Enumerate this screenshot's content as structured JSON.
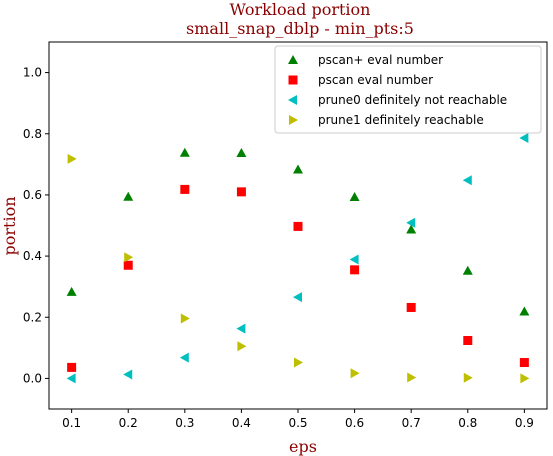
{
  "chart_data": {
    "type": "scatter",
    "title": "Workload portion",
    "subtitle": "small_snap_dblp - min_pts:5",
    "xlabel": "eps",
    "ylabel": "portion",
    "xlim": [
      0.06,
      0.94
    ],
    "ylim": [
      -0.1,
      1.1
    ],
    "x_ticks": [
      "0.1",
      "0.2",
      "0.3",
      "0.4",
      "0.5",
      "0.6",
      "0.7",
      "0.8",
      "0.9"
    ],
    "y_ticks": [
      "0.0",
      "0.2",
      "0.4",
      "0.6",
      "0.8",
      "1.0"
    ],
    "grid": false,
    "legend_position": "top-right",
    "x": [
      0.1,
      0.2,
      0.3,
      0.4,
      0.5,
      0.6,
      0.7,
      0.8,
      0.9
    ],
    "series": [
      {
        "name": "pscan+ eval number",
        "marker": "triangle-up",
        "color": "#008000",
        "values": [
          0.283,
          0.594,
          0.738,
          0.737,
          0.683,
          0.593,
          0.487,
          0.352,
          0.219
        ]
      },
      {
        "name": "pscan eval number",
        "marker": "square",
        "color": "#ff0000",
        "values": [
          0.036,
          0.37,
          0.618,
          0.61,
          0.497,
          0.355,
          0.232,
          0.124,
          0.052
        ]
      },
      {
        "name": "prune0 definitely not reachable",
        "marker": "triangle-left",
        "color": "#00bfbf",
        "values": [
          0.0,
          0.013,
          0.068,
          0.163,
          0.266,
          0.389,
          0.509,
          0.648,
          0.786
        ]
      },
      {
        "name": "prune1 definitely reachable",
        "marker": "triangle-right",
        "color": "#bfbf00",
        "values": [
          0.718,
          0.396,
          0.196,
          0.105,
          0.052,
          0.017,
          0.003,
          0.002,
          0.0
        ]
      }
    ]
  }
}
